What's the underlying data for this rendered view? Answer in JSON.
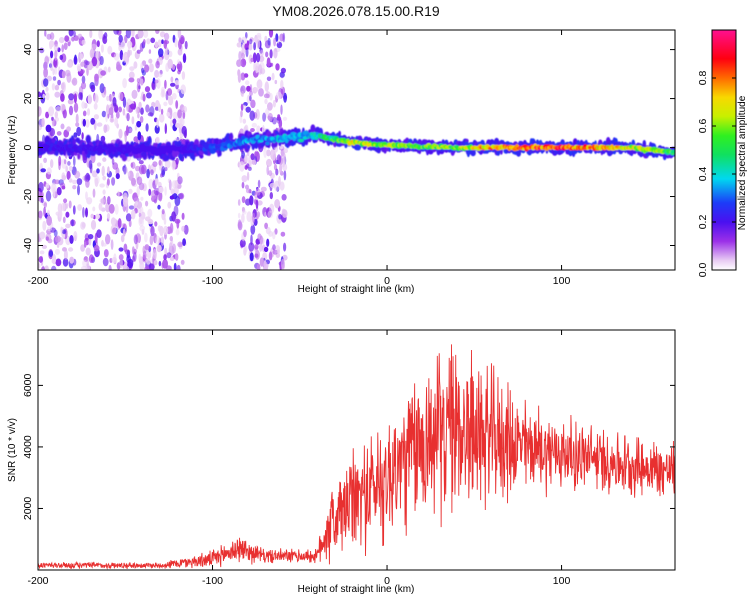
{
  "title": "YM08.2026.078.15.00.R19",
  "chart_data": [
    {
      "type": "heatmap",
      "xlabel": "Height of straight line (km)",
      "ylabel": "Frequency (Hz)",
      "xlim": [
        -200,
        165
      ],
      "ylim": [
        -50,
        48
      ],
      "xticks": [
        -200,
        -100,
        0,
        100
      ],
      "yticks": [
        -40,
        -20,
        0,
        20,
        40
      ],
      "colorbar": {
        "label": "Normalized spectral amplitude",
        "range": [
          0,
          1
        ],
        "ticks": [
          0.0,
          0.2,
          0.4,
          0.6,
          0.8
        ],
        "tick_labels": [
          "0.0",
          "0.2",
          "0.4",
          "0.6",
          "0.8"
        ],
        "colormap": "rainbow (white-violet-blue-cyan-green-yellow-red-magenta)"
      },
      "ridge": {
        "description": "dominant spectral line near 0 Hz",
        "points": [
          {
            "x": -200,
            "freq": 0,
            "amp": 0.22
          },
          {
            "x": -120,
            "freq": -1,
            "amp": 0.18
          },
          {
            "x": -100,
            "freq": 0,
            "amp": 0.3
          },
          {
            "x": -80,
            "freq": 3,
            "amp": 0.35
          },
          {
            "x": -60,
            "freq": 4,
            "amp": 0.38
          },
          {
            "x": -40,
            "freq": 5,
            "amp": 0.42
          },
          {
            "x": -20,
            "freq": 2,
            "amp": 0.7
          },
          {
            "x": 0,
            "freq": 1,
            "amp": 0.62
          },
          {
            "x": 40,
            "freq": 0,
            "amp": 0.6
          },
          {
            "x": 60,
            "freq": 0,
            "amp": 0.85
          },
          {
            "x": 100,
            "freq": 0,
            "amp": 0.88
          },
          {
            "x": 140,
            "freq": 0,
            "amp": 0.7
          },
          {
            "x": 165,
            "freq": -2,
            "amp": 0.55
          }
        ]
      },
      "noise_regions": [
        [
          -200,
          -115
        ],
        [
          -85,
          -58
        ]
      ]
    },
    {
      "type": "line",
      "xlabel": "Height of straight line (km)",
      "ylabel": "SNR (10 * v/v)",
      "xlim": [
        -200,
        165
      ],
      "ylim": [
        0,
        7800
      ],
      "xticks": [
        -200,
        -100,
        0,
        100
      ],
      "yticks": [
        2000,
        4000,
        6000
      ],
      "color": "#e83030",
      "envelope": [
        {
          "x": -200,
          "mean": 150,
          "spread": 120
        },
        {
          "x": -130,
          "mean": 150,
          "spread": 110
        },
        {
          "x": -100,
          "mean": 350,
          "spread": 300
        },
        {
          "x": -85,
          "mean": 700,
          "spread": 500
        },
        {
          "x": -70,
          "mean": 450,
          "spread": 250
        },
        {
          "x": -40,
          "mean": 450,
          "spread": 250
        },
        {
          "x": -35,
          "mean": 1300,
          "spread": 1300
        },
        {
          "x": -20,
          "mean": 2200,
          "spread": 1800
        },
        {
          "x": 0,
          "mean": 3000,
          "spread": 2300
        },
        {
          "x": 20,
          "mean": 4100,
          "spread": 2800
        },
        {
          "x": 40,
          "mean": 4700,
          "spread": 3000
        },
        {
          "x": 60,
          "mean": 4300,
          "spread": 2400
        },
        {
          "x": 80,
          "mean": 4000,
          "spread": 1600
        },
        {
          "x": 100,
          "mean": 3800,
          "spread": 1300
        },
        {
          "x": 130,
          "mean": 3500,
          "spread": 1100
        },
        {
          "x": 165,
          "mean": 3200,
          "spread": 1000
        }
      ]
    }
  ]
}
